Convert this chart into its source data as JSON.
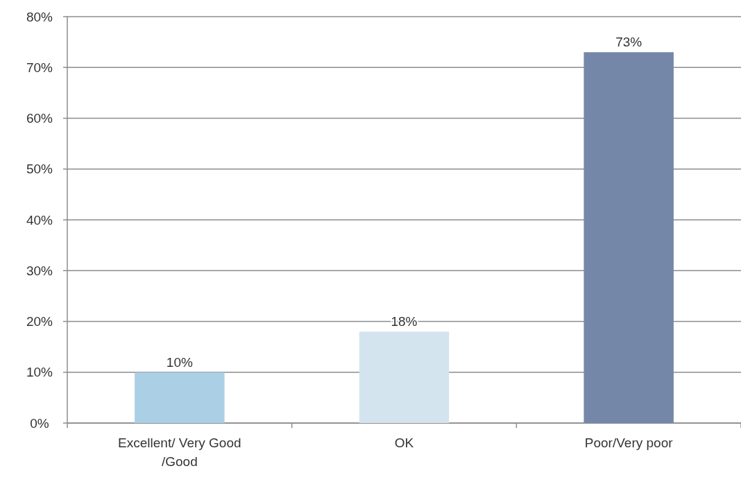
{
  "chart_data": {
    "type": "bar",
    "categories": [
      "Excellent/ Very Good /Good",
      "OK",
      "Poor/Very poor"
    ],
    "values": [
      10,
      18,
      73
    ],
    "colors": [
      "#abcfe5",
      "#d3e4ef",
      "#7587a8"
    ],
    "value_labels": [
      "10%",
      "18%",
      "73%"
    ],
    "ylim": [
      0,
      80
    ],
    "yticks": [
      {
        "value": 0,
        "label": "0%"
      },
      {
        "value": 10,
        "label": "10%"
      },
      {
        "value": 20,
        "label": "20%"
      },
      {
        "value": 30,
        "label": "30%"
      },
      {
        "value": 40,
        "label": "40%"
      },
      {
        "value": 50,
        "label": "50%"
      },
      {
        "value": 60,
        "label": "60%"
      },
      {
        "value": 70,
        "label": "70%"
      },
      {
        "value": 80,
        "label": "80%"
      }
    ],
    "grid": "y"
  }
}
